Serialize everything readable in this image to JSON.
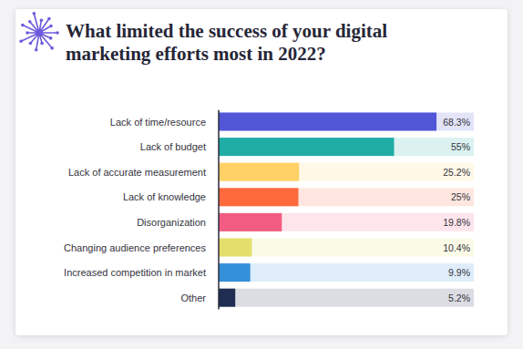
{
  "chart_data": {
    "type": "bar",
    "orientation": "horizontal",
    "title": "What limited the success of your digital marketing efforts most in 2022?",
    "categories": [
      "Lack of time/resource",
      "Lack of budget",
      "Lack of accurate measurement",
      "Lack of knowledge",
      "Disorganization",
      "Changing audience preferences",
      "Increased competition in market",
      "Other"
    ],
    "values": [
      68.3,
      55,
      25.2,
      25,
      19.8,
      10.4,
      9.9,
      5.2
    ],
    "value_labels": [
      "68.3%",
      "55%",
      "25.2%",
      "25%",
      "19.8%",
      "10.4%",
      "9.9%",
      "5.2%"
    ],
    "colors": [
      "#5157d6",
      "#20ada5",
      "#ffd166",
      "#ff6a3d",
      "#f25c82",
      "#e4df6a",
      "#3490d9",
      "#1f2d52"
    ],
    "xlim": [
      0,
      80
    ],
    "data_labels": true,
    "tick_labels": "y",
    "grid": false
  }
}
